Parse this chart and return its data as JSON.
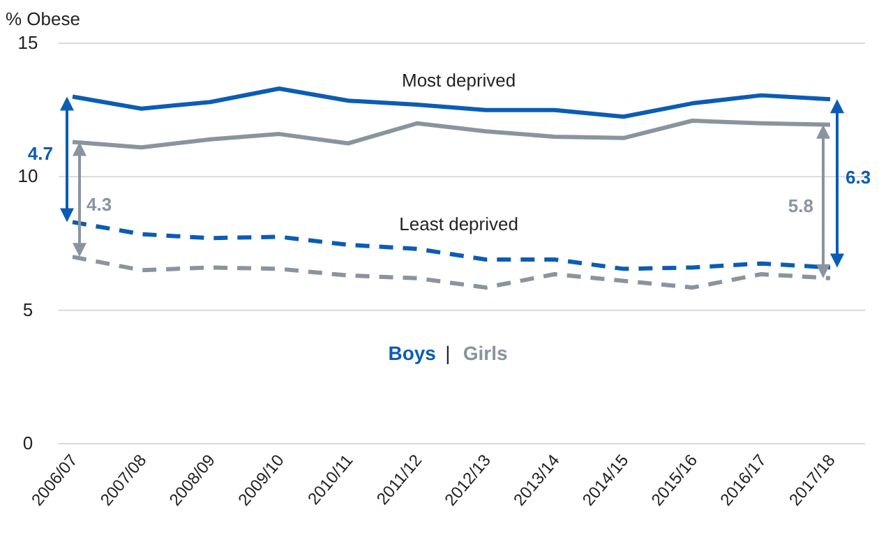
{
  "chart_data": {
    "type": "line",
    "ylabel": "% Obese",
    "categories": [
      "2006/07",
      "2007/08",
      "2008/09",
      "2009/10",
      "2010/11",
      "2011/12",
      "2012/13",
      "2013/14",
      "2014/15",
      "2015/16",
      "2016/17",
      "2017/18"
    ],
    "series": [
      {
        "name": "Boys",
        "color": "#0b5cb5",
        "line_style": "solid",
        "values": [
          13.0,
          12.55,
          12.8,
          13.3,
          12.85,
          12.7,
          12.5,
          12.5,
          12.25,
          12.75,
          13.05,
          12.9
        ]
      },
      {
        "name": "Girls",
        "color": "#8a949f",
        "line_style": "solid",
        "values": [
          11.3,
          11.1,
          11.4,
          11.6,
          11.25,
          12.0,
          11.7,
          11.5,
          11.45,
          12.1,
          12.0,
          11.95
        ]
      },
      {
        "color": "#0b5cb5",
        "line_style": "dashed",
        "values": [
          8.3,
          7.85,
          7.7,
          7.75,
          7.45,
          7.3,
          6.9,
          6.9,
          6.55,
          6.6,
          6.75,
          6.6
        ]
      },
      {
        "color": "#8a949f",
        "line_style": "dashed",
        "values": [
          7.0,
          6.5,
          6.6,
          6.55,
          6.3,
          6.2,
          5.85,
          6.35,
          6.1,
          5.85,
          6.35,
          6.2
        ]
      }
    ],
    "ylim": [
      0,
      15
    ],
    "yticks": [
      0,
      5,
      10,
      15
    ],
    "grid": "y",
    "legend": "bottom",
    "marker": "none",
    "annotations": [
      "Most deprived",
      "Least deprived",
      "4.7",
      "4.3",
      "5.8",
      "6.3",
      "|"
    ]
  }
}
